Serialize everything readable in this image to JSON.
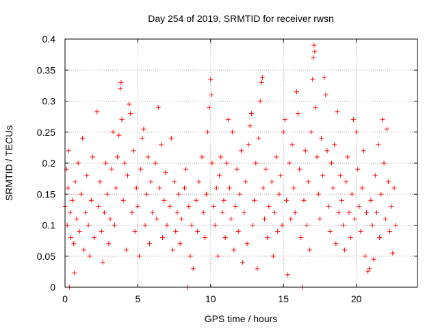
{
  "chart_data": {
    "type": "scatter",
    "title": "Day 254 of 2019, SRMTID for receiver rwsn",
    "xlabel": "GPS time / hours",
    "ylabel": "SRMTID / TECUs",
    "xlim": [
      0,
      24.2
    ],
    "ylim": [
      0,
      0.4
    ],
    "x_ticks": [
      0,
      5,
      10,
      15,
      20
    ],
    "x_tick_labels": [
      "0",
      "5",
      "10",
      "15",
      "20"
    ],
    "y_ticks": [
      0,
      0.05,
      0.1,
      0.15,
      0.2,
      0.25,
      0.3,
      0.35,
      0.4
    ],
    "y_tick_labels": [
      "0",
      "0.05",
      "0.1",
      "0.15",
      "0.2",
      "0.25",
      "0.3",
      "0.35",
      "0.4"
    ],
    "grid": true,
    "marker": "plus",
    "color": "#ff0000",
    "series": [
      {
        "name": "SRMTID",
        "points": [
          [
            0.0,
            0.13
          ],
          [
            0.1,
            0.19
          ],
          [
            0.15,
            0.1
          ],
          [
            0.2,
            0.16
          ],
          [
            0.25,
            0.22
          ],
          [
            0.3,
            0.0
          ],
          [
            0.35,
            0.12
          ],
          [
            0.4,
            0.08
          ],
          [
            0.5,
            0.14
          ],
          [
            0.6,
            0.07
          ],
          [
            0.65,
            0.023
          ],
          [
            0.7,
            0.17
          ],
          [
            0.8,
            0.11
          ],
          [
            0.9,
            0.2
          ],
          [
            1.0,
            0.09
          ],
          [
            1.1,
            0.15
          ],
          [
            1.2,
            0.24
          ],
          [
            1.3,
            0.06
          ],
          [
            1.4,
            0.12
          ],
          [
            1.5,
            0.18
          ],
          [
            1.6,
            0.1
          ],
          [
            1.7,
            0.05
          ],
          [
            1.8,
            0.14
          ],
          [
            1.9,
            0.21
          ],
          [
            2.0,
            0.08
          ],
          [
            2.2,
            0.283
          ],
          [
            2.3,
            0.13
          ],
          [
            2.4,
            0.17
          ],
          [
            2.5,
            0.09
          ],
          [
            2.6,
            0.04
          ],
          [
            2.7,
            0.12
          ],
          [
            2.8,
            0.2
          ],
          [
            2.9,
            0.15
          ],
          [
            3.0,
            0.07
          ],
          [
            3.1,
            0.11
          ],
          [
            3.2,
            0.19
          ],
          [
            3.3,
            0.25
          ],
          [
            3.4,
            0.1
          ],
          [
            3.5,
            0.16
          ],
          [
            3.6,
            0.21
          ],
          [
            3.7,
            0.245
          ],
          [
            3.8,
            0.32
          ],
          [
            3.85,
            0.33
          ],
          [
            3.9,
            0.27
          ],
          [
            4.0,
            0.14
          ],
          [
            4.1,
            0.2
          ],
          [
            4.2,
            0.06
          ],
          [
            4.3,
            0.18
          ],
          [
            4.4,
            0.295
          ],
          [
            4.5,
            0.28
          ],
          [
            4.6,
            0.12
          ],
          [
            4.7,
            0.22
          ],
          [
            4.8,
            0.09
          ],
          [
            4.9,
            0.16
          ],
          [
            5.0,
            0.13
          ],
          [
            5.1,
            0.05
          ],
          [
            5.2,
            0.19
          ],
          [
            5.3,
            0.24
          ],
          [
            5.4,
            0.255
          ],
          [
            5.5,
            0.1
          ],
          [
            5.6,
            0.15
          ],
          [
            5.7,
            0.21
          ],
          [
            5.8,
            0.07
          ],
          [
            5.9,
            0.17
          ],
          [
            6.0,
            0.12
          ],
          [
            6.2,
            0.2
          ],
          [
            6.3,
            0.11
          ],
          [
            6.4,
            0.29
          ],
          [
            6.5,
            0.16
          ],
          [
            6.6,
            0.23
          ],
          [
            6.7,
            0.08
          ],
          [
            6.8,
            0.14
          ],
          [
            6.9,
            0.185
          ],
          [
            7.0,
            0.1
          ],
          [
            7.2,
            0.13
          ],
          [
            7.3,
            0.24
          ],
          [
            7.4,
            0.06
          ],
          [
            7.5,
            0.17
          ],
          [
            7.6,
            0.09
          ],
          [
            7.7,
            0.12
          ],
          [
            7.8,
            0.15
          ],
          [
            7.9,
            0.07
          ],
          [
            8.0,
            0.11
          ],
          [
            8.2,
            0.16
          ],
          [
            8.3,
            0.19
          ],
          [
            8.4,
            0.0
          ],
          [
            8.5,
            0.13
          ],
          [
            8.6,
            0.05
          ],
          [
            8.7,
            0.1
          ],
          [
            8.8,
            0.03
          ],
          [
            9.0,
            0.14
          ],
          [
            9.1,
            0.09
          ],
          [
            9.2,
            0.17
          ],
          [
            9.4,
            0.21
          ],
          [
            9.5,
            0.12
          ],
          [
            9.6,
            0.08
          ],
          [
            9.7,
            0.15
          ],
          [
            9.8,
            0.25
          ],
          [
            9.9,
            0.29
          ],
          [
            10.0,
            0.335
          ],
          [
            10.05,
            0.31
          ],
          [
            10.1,
            0.2
          ],
          [
            10.2,
            0.13
          ],
          [
            10.3,
            0.1
          ],
          [
            10.4,
            0.16
          ],
          [
            10.5,
            0.05
          ],
          [
            10.6,
            0.18
          ],
          [
            10.7,
            0.21
          ],
          [
            10.8,
            0.12
          ],
          [
            10.9,
            0.14
          ],
          [
            11.0,
            0.08
          ],
          [
            11.1,
            0.2
          ],
          [
            11.2,
            0.27
          ],
          [
            11.3,
            0.16
          ],
          [
            11.4,
            0.11
          ],
          [
            11.5,
            0.25
          ],
          [
            11.6,
            0.06
          ],
          [
            11.7,
            0.13
          ],
          [
            11.8,
            0.19
          ],
          [
            11.9,
            0.09
          ],
          [
            12.0,
            0.15
          ],
          [
            12.1,
            0.22
          ],
          [
            12.2,
            0.04
          ],
          [
            12.3,
            0.12
          ],
          [
            12.4,
            0.17
          ],
          [
            12.5,
            0.07
          ],
          [
            12.6,
            0.23
          ],
          [
            12.7,
            0.26
          ],
          [
            12.8,
            0.28
          ],
          [
            12.9,
            0.1
          ],
          [
            13.0,
            0.14
          ],
          [
            13.1,
            0.2
          ],
          [
            13.2,
            0.03
          ],
          [
            13.3,
            0.24
          ],
          [
            13.4,
            0.3
          ],
          [
            13.5,
            0.33
          ],
          [
            13.55,
            0.338
          ],
          [
            13.6,
            0.16
          ],
          [
            13.7,
            0.11
          ],
          [
            13.8,
            0.19
          ],
          [
            13.9,
            0.08
          ],
          [
            14.0,
            0.13
          ],
          [
            14.2,
            0.17
          ],
          [
            14.3,
            0.05
          ],
          [
            14.4,
            0.12
          ],
          [
            14.5,
            0.21
          ],
          [
            14.6,
            0.09
          ],
          [
            14.7,
            0.15
          ],
          [
            14.8,
            0.18
          ],
          [
            14.9,
            0.1
          ],
          [
            15.0,
            0.25
          ],
          [
            15.1,
            0.27
          ],
          [
            15.2,
            0.14
          ],
          [
            15.3,
            0.02
          ],
          [
            15.4,
            0.2
          ],
          [
            15.5,
            0.11
          ],
          [
            15.6,
            0.23
          ],
          [
            15.7,
            0.16
          ],
          [
            15.8,
            0.12
          ],
          [
            15.9,
            0.315
          ],
          [
            16.0,
            0.28
          ],
          [
            16.1,
            0.19
          ],
          [
            16.2,
            0.08
          ],
          [
            16.3,
            0.0
          ],
          [
            16.4,
            0.14
          ],
          [
            16.5,
            0.22
          ],
          [
            16.6,
            0.1
          ],
          [
            16.7,
            0.17
          ],
          [
            16.8,
            0.06
          ],
          [
            16.9,
            0.25
          ],
          [
            17.0,
            0.335
          ],
          [
            17.05,
            0.37
          ],
          [
            17.1,
            0.39
          ],
          [
            17.15,
            0.38
          ],
          [
            17.2,
            0.29
          ],
          [
            17.3,
            0.21
          ],
          [
            17.4,
            0.15
          ],
          [
            17.5,
            0.11
          ],
          [
            17.6,
            0.24
          ],
          [
            17.7,
            0.18
          ],
          [
            17.8,
            0.338
          ],
          [
            17.9,
            0.31
          ],
          [
            18.0,
            0.22
          ],
          [
            18.1,
            0.13
          ],
          [
            18.2,
            0.09
          ],
          [
            18.3,
            0.2
          ],
          [
            18.4,
            0.16
          ],
          [
            18.5,
            0.23
          ],
          [
            18.6,
            0.07
          ],
          [
            18.7,
            0.283
          ],
          [
            18.8,
            0.12
          ],
          [
            18.9,
            0.18
          ],
          [
            19.0,
            0.14
          ],
          [
            19.1,
            0.1
          ],
          [
            19.2,
            0.06
          ],
          [
            19.3,
            0.17
          ],
          [
            19.4,
            0.21
          ],
          [
            19.5,
            0.12
          ],
          [
            19.6,
            0.08
          ],
          [
            19.7,
            0.15
          ],
          [
            19.8,
            0.27
          ],
          [
            19.9,
            0.11
          ],
          [
            20.0,
            0.25
          ],
          [
            20.1,
            0.19
          ],
          [
            20.2,
            0.13
          ],
          [
            20.3,
            0.09
          ],
          [
            20.4,
            0.16
          ],
          [
            20.5,
            0.22
          ],
          [
            20.6,
            0.05
          ],
          [
            20.7,
            0.12
          ],
          [
            20.8,
            0.025
          ],
          [
            20.9,
            0.03
          ],
          [
            21.0,
            0.14
          ],
          [
            21.1,
            0.1
          ],
          [
            21.2,
            0.045
          ],
          [
            21.3,
            0.18
          ],
          [
            21.4,
            0.12
          ],
          [
            21.5,
            0.23
          ],
          [
            21.6,
            0.08
          ],
          [
            21.7,
            0.15
          ],
          [
            21.8,
            0.27
          ],
          [
            21.9,
            0.2
          ],
          [
            22.0,
            0.11
          ],
          [
            22.1,
            0.255
          ],
          [
            22.2,
            0.17
          ],
          [
            22.3,
            0.09
          ],
          [
            22.4,
            0.13
          ],
          [
            22.5,
            0.055
          ],
          [
            22.6,
            0.16
          ],
          [
            22.7,
            0.1
          ]
        ]
      }
    ]
  }
}
